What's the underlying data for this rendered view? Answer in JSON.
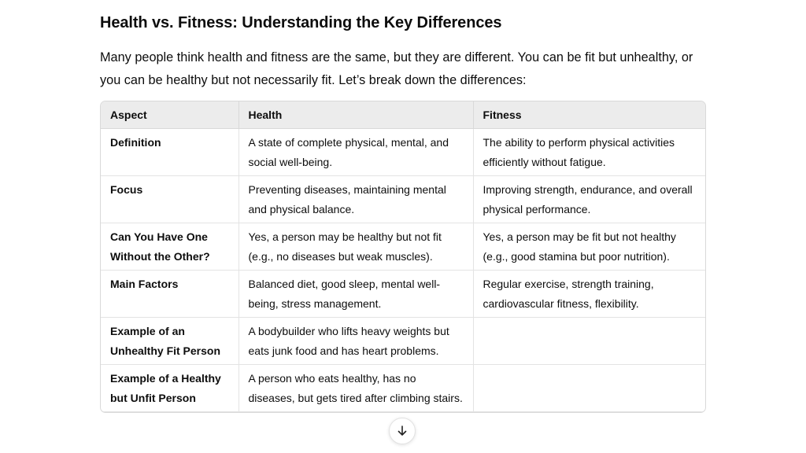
{
  "page": {
    "title": "Health vs. Fitness: Understanding the Key Differences",
    "intro": "Many people think health and fitness are the same, but they are different. You can be fit but unhealthy, or you can be healthy but not necessarily fit. Let’s break down the differences:"
  },
  "table": {
    "headers": [
      "Aspect",
      "Health",
      "Fitness"
    ],
    "rows": [
      {
        "aspect": "Definition",
        "health": "A state of complete physical, mental, and social well-being.",
        "fitness": "The ability to perform physical activities efficiently without fatigue."
      },
      {
        "aspect": "Focus",
        "health": "Preventing diseases, maintaining mental and physical balance.",
        "fitness": "Improving strength, endurance, and overall physical performance."
      },
      {
        "aspect": "Can You Have One Without the Other?",
        "health": "Yes, a person may be healthy but not fit (e.g., no diseases but weak muscles).",
        "fitness": "Yes, a person may be fit but not healthy (e.g., good stamina but poor nutrition)."
      },
      {
        "aspect": "Main Factors",
        "health": "Balanced diet, good sleep, mental well-being, stress management.",
        "fitness": "Regular exercise, strength training, cardiovascular fitness, flexibility."
      },
      {
        "aspect": "Example of an Unhealthy Fit Person",
        "health": "A bodybuilder who lifts heavy weights but eats junk food and has heart problems.",
        "fitness": ""
      },
      {
        "aspect": "Example of a Healthy but Unfit Person",
        "health": "A person who eats healthy, has no diseases, but gets tired after climbing stairs.",
        "fitness": ""
      }
    ]
  },
  "scroll_button": {
    "icon": "arrow-down-icon"
  }
}
